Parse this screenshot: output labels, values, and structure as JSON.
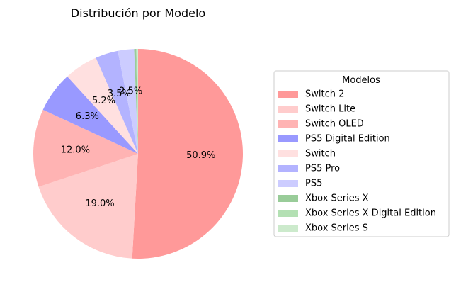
{
  "chart_data": {
    "type": "pie",
    "title": "Distribución por Modelo",
    "legend": {
      "title": "Modelos",
      "placement": "right"
    },
    "start_angle_deg": 90,
    "direction": "clockwise",
    "slices": [
      {
        "label": "Switch 2",
        "value": 50.9,
        "pct_label": "50.9%",
        "color": "#ff9999",
        "show_pct": true
      },
      {
        "label": "Switch Lite",
        "value": 19.0,
        "pct_label": "19.0%",
        "color": "#ffcccc",
        "show_pct": true
      },
      {
        "label": "Switch OLED",
        "value": 12.0,
        "pct_label": "12.0%",
        "color": "#ffb3b3",
        "show_pct": true
      },
      {
        "label": "PS5 Digital Edition",
        "value": 6.3,
        "pct_label": "6.3%",
        "color": "#9999ff",
        "show_pct": true
      },
      {
        "label": "Switch",
        "value": 5.2,
        "pct_label": "5.2%",
        "color": "#ffe0e0",
        "show_pct": true
      },
      {
        "label": "PS5 Pro",
        "value": 3.5,
        "pct_label": "3.5%",
        "color": "#b3b3ff",
        "show_pct": true
      },
      {
        "label": "PS5",
        "value": 2.5,
        "pct_label": "2.5%",
        "color": "#ccccff",
        "show_pct": true
      },
      {
        "label": "Xbox Series X",
        "value": 0.3,
        "pct_label": "",
        "color": "#99cc99",
        "show_pct": false
      },
      {
        "label": "Xbox Series X Digital Edition",
        "value": 0.2,
        "pct_label": "",
        "color": "#b3e0b3",
        "show_pct": false
      },
      {
        "label": "Xbox Series S",
        "value": 0.1,
        "pct_label": "",
        "color": "#cceacc",
        "show_pct": false
      }
    ]
  }
}
